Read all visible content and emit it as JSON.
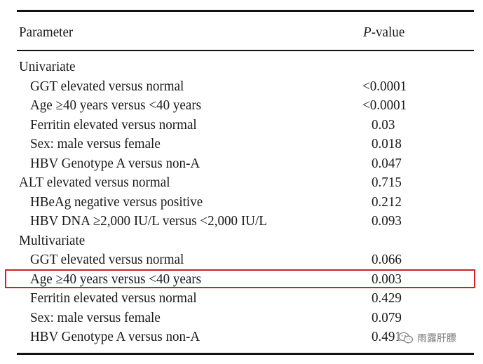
{
  "table": {
    "headers": {
      "parameter": "Parameter",
      "p_italic": "P",
      "p_rest": "-value"
    },
    "rows": [
      {
        "label": "Univariate",
        "value": "",
        "indent": false,
        "shift": false
      },
      {
        "label": "GGT elevated versus normal",
        "value": "<0.0001",
        "indent": true,
        "shift": false
      },
      {
        "label": "Age ≥40 years versus <40 years",
        "value": "<0.0001",
        "indent": true,
        "shift": false
      },
      {
        "label": "Ferritin elevated versus normal",
        "value": "0.03",
        "indent": true,
        "shift": true
      },
      {
        "label": "Sex: male versus female",
        "value": "0.018",
        "indent": true,
        "shift": true
      },
      {
        "label": "HBV Genotype A versus non-A",
        "value": "0.047",
        "indent": true,
        "shift": true
      },
      {
        "label": "ALT elevated versus normal",
        "value": "0.715",
        "indent": false,
        "shift": true
      },
      {
        "label": "HBeAg negative versus positive",
        "value": "0.212",
        "indent": true,
        "shift": true
      },
      {
        "label": "HBV DNA ≥2,000 IU/L versus <2,000 IU/L",
        "value": "0.093",
        "indent": true,
        "shift": true
      },
      {
        "label": "Multivariate",
        "value": "",
        "indent": false,
        "shift": false
      },
      {
        "label": "GGT elevated versus normal",
        "value": "0.066",
        "indent": true,
        "shift": true
      },
      {
        "label": "Age ≥40 years versus <40 years",
        "value": "0.003",
        "indent": true,
        "shift": true
      },
      {
        "label": "Ferritin elevated versus normal",
        "value": "0.429",
        "indent": true,
        "shift": true
      },
      {
        "label": "Sex: male versus female",
        "value": "0.079",
        "indent": true,
        "shift": true
      },
      {
        "label": "HBV Genotype A versus non-A",
        "value": "0.491",
        "indent": true,
        "shift": true
      }
    ],
    "highlighted_row": 11
  },
  "highlight_color": "#d31e24",
  "watermark": {
    "icon": "wechat-icon",
    "text": "雨露肝膘"
  }
}
